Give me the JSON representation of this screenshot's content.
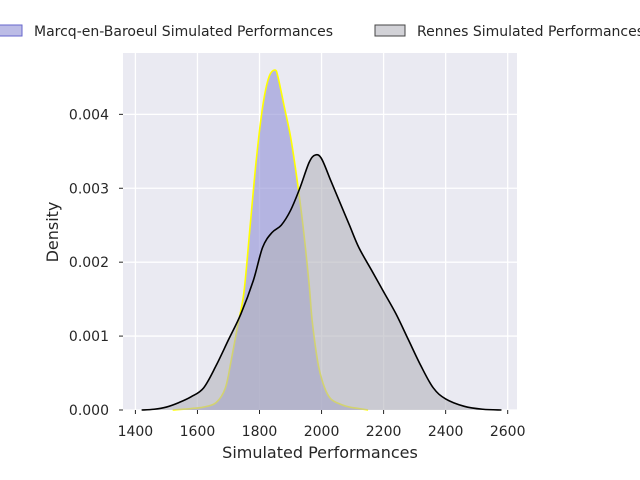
{
  "chart_data": {
    "type": "area",
    "xlabel": "Simulated Performances",
    "ylabel": "Density",
    "xlim": [
      1360,
      2630
    ],
    "ylim": [
      0,
      0.00483
    ],
    "x_ticks": [
      1400,
      1600,
      1800,
      2000,
      2200,
      2400,
      2600
    ],
    "y_ticks": [
      0.0,
      0.001,
      0.002,
      0.003,
      0.004
    ],
    "y_tick_labels": [
      "0.000",
      "0.001",
      "0.002",
      "0.003",
      "0.004"
    ],
    "grid": true,
    "legend_position": "top",
    "series": [
      {
        "name": "Marcq-en-Baroeul Simulated Performances",
        "fill": "#8f8fd6",
        "edge": "#ffff00",
        "x": [
          1520,
          1580,
          1620,
          1660,
          1690,
          1710,
          1730,
          1750,
          1770,
          1790,
          1810,
          1830,
          1850,
          1860,
          1880,
          1900,
          1920,
          1940,
          1960,
          1970,
          1990,
          2010,
          2030,
          2060,
          2090,
          2120,
          2150
        ],
        "y": [
          0.0,
          2e-05,
          4e-05,
          0.0001,
          0.0003,
          0.0007,
          0.00115,
          0.0016,
          0.0025,
          0.0034,
          0.0041,
          0.0045,
          0.0046,
          0.0045,
          0.0041,
          0.0037,
          0.00315,
          0.0025,
          0.0017,
          0.0012,
          0.0006,
          0.0003,
          0.00015,
          8e-05,
          4e-05,
          2e-05,
          0.0
        ]
      },
      {
        "name": "Rennes Simulated Performances",
        "fill": "#b4b4bc",
        "edge": "#000000",
        "x": [
          1420,
          1460,
          1500,
          1540,
          1580,
          1620,
          1660,
          1700,
          1740,
          1780,
          1810,
          1840,
          1870,
          1900,
          1930,
          1960,
          1980,
          2000,
          2030,
          2060,
          2090,
          2120,
          2160,
          2200,
          2240,
          2280,
          2320,
          2360,
          2400,
          2460,
          2520,
          2580
        ],
        "y": [
          0.0,
          1e-05,
          4e-05,
          0.0001,
          0.00018,
          0.0003,
          0.0006,
          0.00095,
          0.0013,
          0.00175,
          0.0022,
          0.0024,
          0.0025,
          0.0027,
          0.003,
          0.00335,
          0.00345,
          0.0034,
          0.0031,
          0.0028,
          0.0025,
          0.0022,
          0.0019,
          0.0016,
          0.0013,
          0.00095,
          0.0006,
          0.0003,
          0.00015,
          5e-05,
          1e-05,
          0.0
        ]
      }
    ]
  }
}
